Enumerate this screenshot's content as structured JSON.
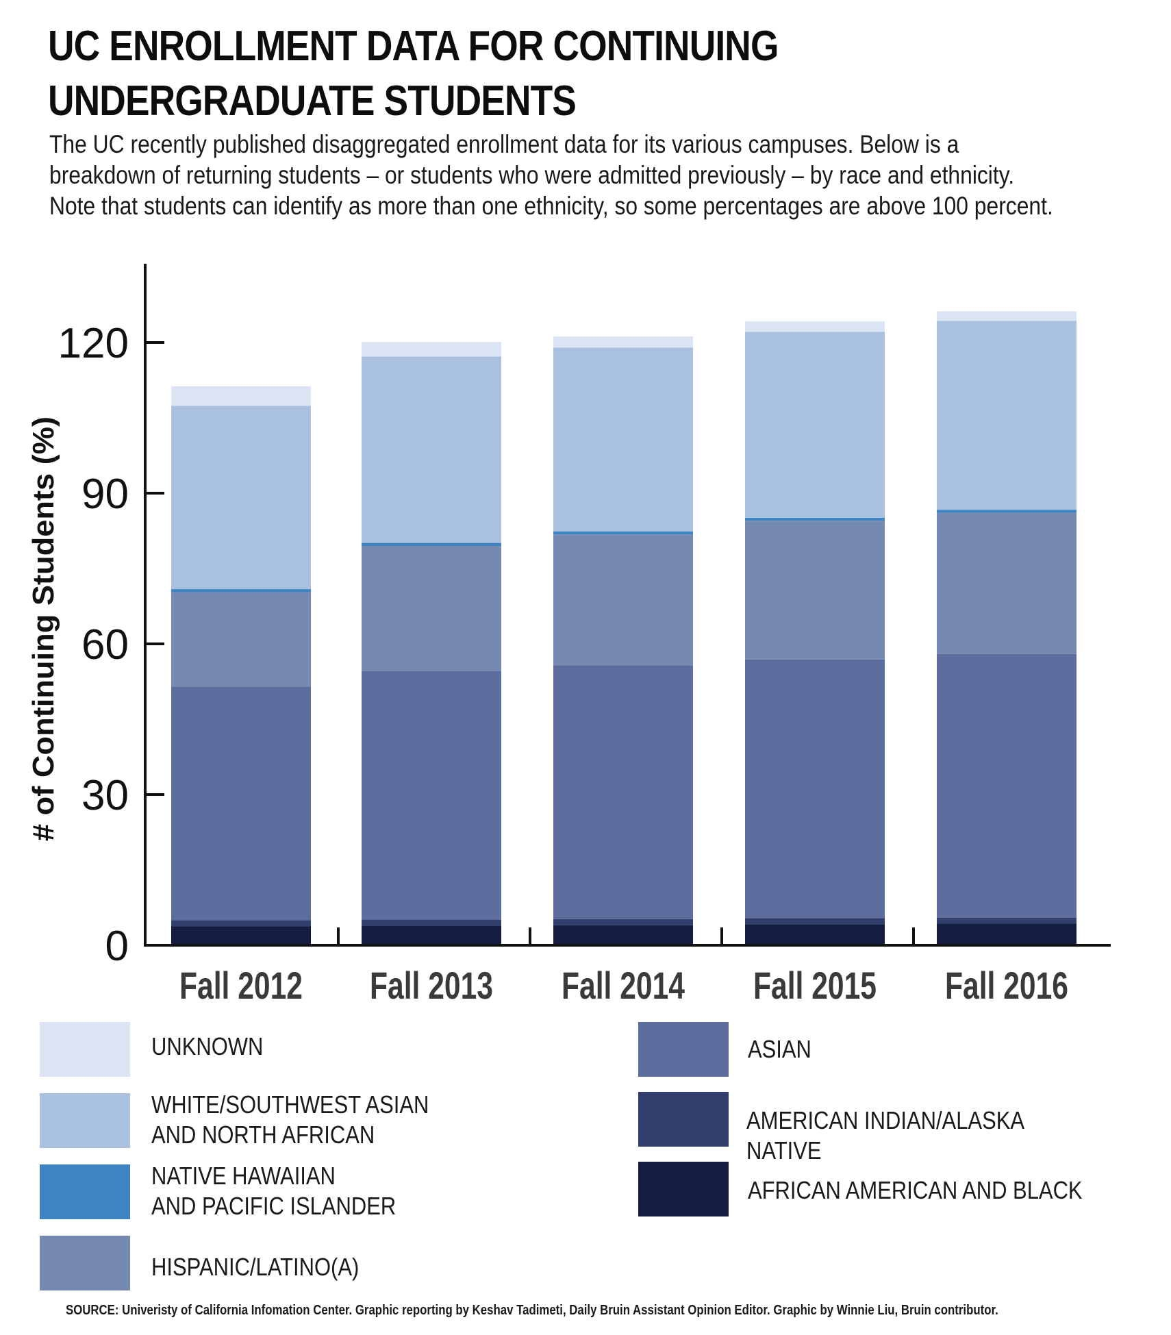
{
  "title": "UC ENROLLMENT DATA FOR CONTINUING UNDERGRADUATE STUDENTS",
  "subtitle": "The UC recently published disaggregated enrollment data for its various campuses. Below is a breakdown of returning students – or students who were admitted previously – by race and ethnicity. Note that students can identify as more than one ethnicity, so some percentages are above 100 percent.",
  "source": "SOURCE: Univeristy of California Infomation Center. Graphic reporting by Keshav Tadimeti, Daily Bruin Assistant Opinion Editor. Graphic by Winnie Liu, Bruin contributor.",
  "chart_data": {
    "type": "bar",
    "stacked": true,
    "title": "UC ENROLLMENT DATA FOR CONTINUING UNDERGRADUATE STUDENTS",
    "xlabel": "",
    "ylabel": "# of Continuing Students (%)",
    "ylim": [
      0,
      135
    ],
    "yticks": [
      0,
      30,
      60,
      90,
      120
    ],
    "grid": false,
    "legend_position": "bottom",
    "categories": [
      "Fall 2012",
      "Fall 2013",
      "Fall 2014",
      "Fall 2015",
      "Fall 2016"
    ],
    "series": [
      {
        "name": "AFRICAN AMERICAN AND BLACK",
        "color": "#141d3f",
        "values": [
          3.8,
          3.9,
          4.0,
          4.2,
          4.3
        ]
      },
      {
        "name": "AMERICAN INDIAN/ALASKA NATIVE",
        "color": "#323f6c",
        "values": [
          1.2,
          1.2,
          1.2,
          1.2,
          1.2
        ]
      },
      {
        "name": "ASIAN",
        "color": "#5d6d9d",
        "values": [
          46.5,
          49.5,
          50.5,
          51.5,
          52.5
        ]
      },
      {
        "name": "HISPANIC/LATINO(A)",
        "color": "#7689b0",
        "values": [
          18.8,
          24.9,
          26.1,
          27.6,
          28.1
        ]
      },
      {
        "name": "NATIVE HAWAIIAN AND PACIFIC ISLANDER",
        "color": "#3e84c2",
        "values": [
          0.6,
          0.6,
          0.6,
          0.6,
          0.6
        ]
      },
      {
        "name": "WHITE/SOUTHWEST ASIAN AND NORTH AFRICAN",
        "color": "#a9c1df",
        "values": [
          36.5,
          37.1,
          36.6,
          37.0,
          37.6
        ]
      },
      {
        "name": "UNKNOWN",
        "color": "#dbe4f3",
        "values": [
          3.9,
          2.9,
          2.2,
          2.1,
          1.9
        ]
      }
    ]
  },
  "legend": [
    {
      "label": "UNKNOWN",
      "color": "#dbe4f3"
    },
    {
      "label": "WHITE/SOUTHWEST ASIAN\nAND NORTH AFRICAN",
      "color": "#a9c1df"
    },
    {
      "label": "NATIVE HAWAIIAN\nAND PACIFIC ISLANDER",
      "color": "#3e84c2"
    },
    {
      "label": "HISPANIC/LATINO(A)",
      "color": "#7689b0"
    },
    {
      "label": "ASIAN",
      "color": "#5d6d9d"
    },
    {
      "label": "AMERICAN INDIAN/ALASKA NATIVE",
      "color": "#323f6c"
    },
    {
      "label": "AFRICAN AMERICAN AND BLACK",
      "color": "#141d3f"
    }
  ]
}
